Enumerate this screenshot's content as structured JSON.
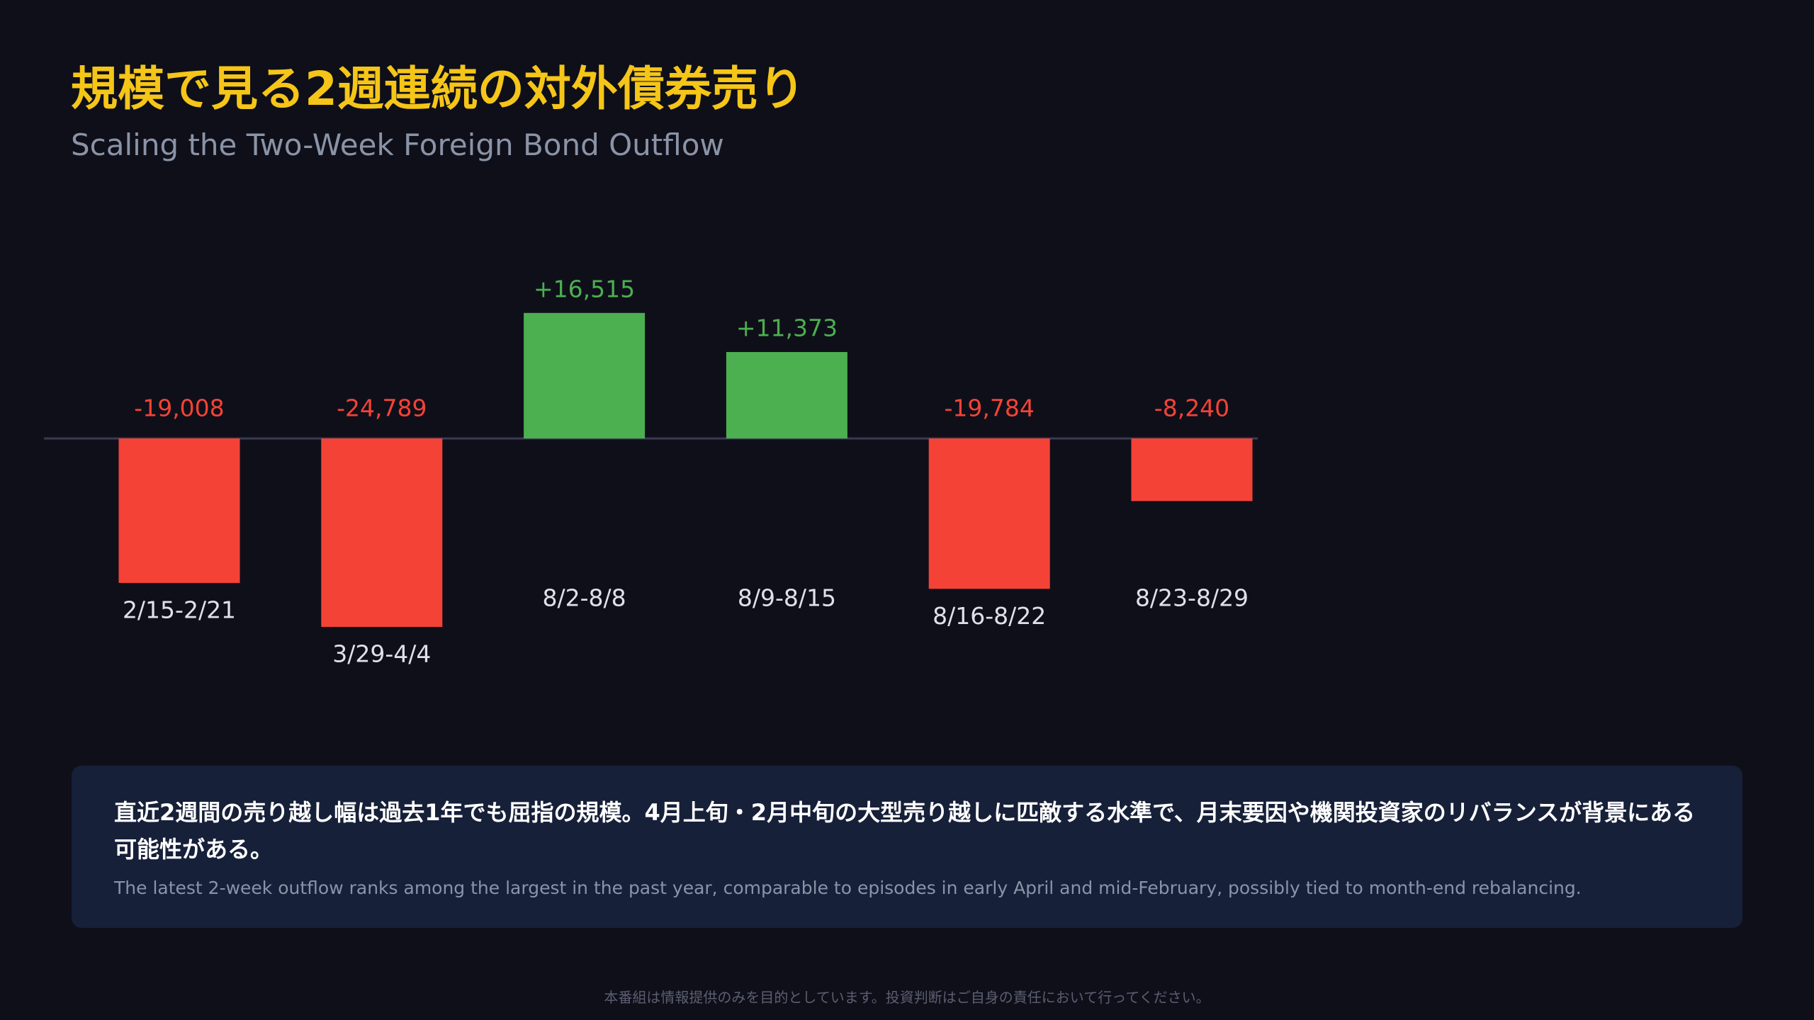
{
  "title": "規模で見る2週連続の対外債券売り",
  "subtitle": "Scaling the Two-Week Foreign Bond Outflow",
  "chart_data": {
    "type": "bar",
    "categories": [
      "2/15-2/21",
      "3/29-4/4",
      "8/2-8/8",
      "8/9-8/15",
      "8/16-8/22",
      "8/23-8/29"
    ],
    "values": [
      -19008,
      -24789,
      16515,
      11373,
      -19784,
      -8240
    ],
    "value_labels": [
      "-19,008",
      "-24,789",
      "+16,515",
      "+11,373",
      "-19,784",
      "-8,240"
    ],
    "colors": [
      "#f44336",
      "#f44336",
      "#4caf50",
      "#4caf50",
      "#f44336",
      "#f44336"
    ]
  },
  "note": {
    "ja": "直近2週間の売り越し幅は過去1年でも屈指の規模。4月上旬・2月中旬の大型売り越しに匹敵する水準で、月末要因や機関投資家のリバランスが背景にある可能性がある。",
    "en": "The latest 2-week outflow ranks among the largest in the past year, comparable to episodes in early April and mid-February, possibly tied to month-end rebalancing."
  },
  "footer": "本番組は情報提供のみを目的としています。投資判断はご自身の責任において行ってください。"
}
